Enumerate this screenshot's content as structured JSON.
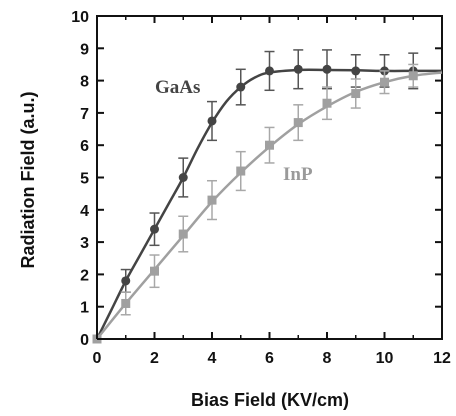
{
  "chart_data": {
    "type": "line",
    "xlabel": "Bias Field (KV/cm)",
    "ylabel": "Radiation Field (a.u.)",
    "xlim": [
      0,
      12
    ],
    "ylim": [
      0,
      10
    ],
    "xticks": [
      "0",
      "2",
      "4",
      "6",
      "8",
      "10",
      "12"
    ],
    "yticks": [
      "0",
      "1",
      "2",
      "3",
      "4",
      "5",
      "6",
      "7",
      "8",
      "9",
      "10"
    ],
    "grid": false,
    "series": [
      {
        "name": "GaAs",
        "marker": "circle",
        "color": "#444444",
        "points": [
          {
            "x": 0,
            "y": 0,
            "err": 0
          },
          {
            "x": 1,
            "y": 1.8,
            "err": 0.35
          },
          {
            "x": 2,
            "y": 3.4,
            "err": 0.5
          },
          {
            "x": 3,
            "y": 5.0,
            "err": 0.6
          },
          {
            "x": 4,
            "y": 6.75,
            "err": 0.6
          },
          {
            "x": 5,
            "y": 7.8,
            "err": 0.55
          },
          {
            "x": 6,
            "y": 8.3,
            "err": 0.6
          },
          {
            "x": 7,
            "y": 8.35,
            "err": 0.6
          },
          {
            "x": 8,
            "y": 8.35,
            "err": 0.6
          },
          {
            "x": 9,
            "y": 8.3,
            "err": 0.5
          },
          {
            "x": 10,
            "y": 8.3,
            "err": 0.5
          },
          {
            "x": 11,
            "y": 8.3,
            "err": 0.55
          }
        ],
        "fit_curve": [
          [
            0,
            0
          ],
          [
            0.5,
            0.9
          ],
          [
            1,
            1.8
          ],
          [
            1.5,
            2.6
          ],
          [
            2,
            3.4
          ],
          [
            2.5,
            4.2
          ],
          [
            3,
            5.0
          ],
          [
            3.5,
            5.9
          ],
          [
            4,
            6.7
          ],
          [
            4.5,
            7.35
          ],
          [
            5,
            7.8
          ],
          [
            5.5,
            8.1
          ],
          [
            6,
            8.25
          ],
          [
            7,
            8.33
          ],
          [
            8,
            8.33
          ],
          [
            9,
            8.32
          ],
          [
            10,
            8.3
          ],
          [
            11,
            8.3
          ],
          [
            12,
            8.3
          ]
        ]
      },
      {
        "name": "InP",
        "marker": "square",
        "color": "#a0a0a0",
        "points": [
          {
            "x": 0,
            "y": 0,
            "err": 0
          },
          {
            "x": 1,
            "y": 1.1,
            "err": 0.35
          },
          {
            "x": 2,
            "y": 2.1,
            "err": 0.5
          },
          {
            "x": 3,
            "y": 3.25,
            "err": 0.55
          },
          {
            "x": 4,
            "y": 4.3,
            "err": 0.6
          },
          {
            "x": 5,
            "y": 5.2,
            "err": 0.6
          },
          {
            "x": 6,
            "y": 6.0,
            "err": 0.55
          },
          {
            "x": 7,
            "y": 6.7,
            "err": 0.55
          },
          {
            "x": 8,
            "y": 7.3,
            "err": 0.5
          },
          {
            "x": 9,
            "y": 7.6,
            "err": 0.45
          },
          {
            "x": 10,
            "y": 7.95,
            "err": 0.35
          },
          {
            "x": 11,
            "y": 8.15,
            "err": 0.35
          }
        ],
        "fit_curve": [
          [
            0,
            0
          ],
          [
            1,
            1.1
          ],
          [
            2,
            2.15
          ],
          [
            3,
            3.2
          ],
          [
            4,
            4.25
          ],
          [
            5,
            5.15
          ],
          [
            6,
            5.95
          ],
          [
            7,
            6.65
          ],
          [
            8,
            7.2
          ],
          [
            9,
            7.65
          ],
          [
            10,
            7.95
          ],
          [
            11,
            8.15
          ],
          [
            12,
            8.25
          ]
        ]
      }
    ]
  }
}
